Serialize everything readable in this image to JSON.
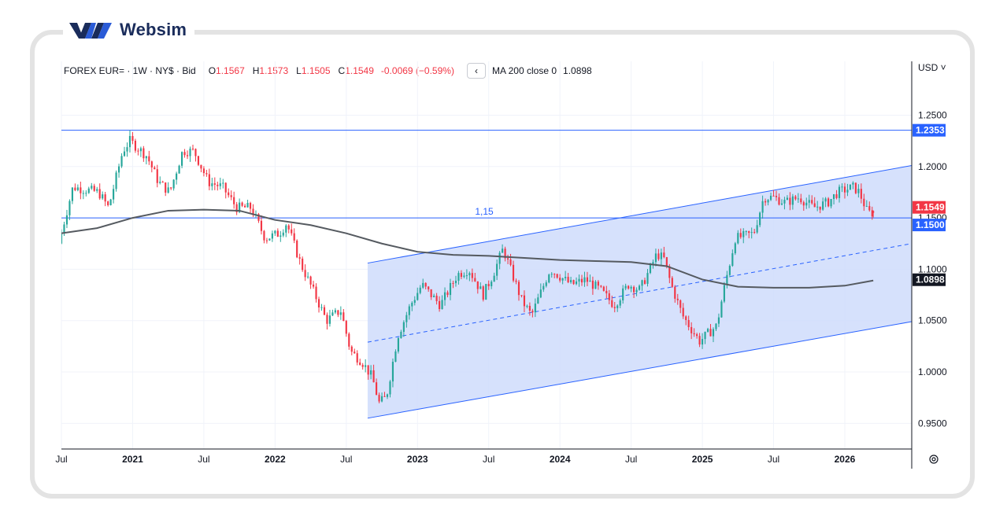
{
  "brand": {
    "name": "Websim"
  },
  "legend": {
    "symbol": "FOREX EUR=  ·  1W  ·  NY$  ·  Bid",
    "o_label": "O",
    "o_value": "1.1567",
    "h_label": "H",
    "h_value": "1.1573",
    "l_label": "L",
    "l_value": "1.1505",
    "c_label": "C",
    "c_value": "1.1549",
    "change": "-0.0069 (−0.59%)",
    "collapse_icon": "chevron-left-icon",
    "ma_label": "MA 200 close 0",
    "ma_value": "1.0898"
  },
  "currency_selector": "USD ˅",
  "colors": {
    "up": "#26a69a",
    "down": "#f23645",
    "accent": "#2962ff",
    "ma": "#555a60",
    "channel_fill": "#cfdcfc"
  },
  "chart_data": {
    "type": "candlestick",
    "y_ticks": [
      "1.2500",
      "1.2000",
      "1.1500",
      "1.1000",
      "1.0500",
      "1.0000",
      "0.9500"
    ],
    "x_ticks": [
      {
        "label": "Jul",
        "t": 2020.5,
        "bold": false
      },
      {
        "label": "2021",
        "t": 2021.0,
        "bold": true
      },
      {
        "label": "Jul",
        "t": 2021.5,
        "bold": false
      },
      {
        "label": "2022",
        "t": 2022.0,
        "bold": true
      },
      {
        "label": "Jul",
        "t": 2022.5,
        "bold": false
      },
      {
        "label": "2023",
        "t": 2023.0,
        "bold": true
      },
      {
        "label": "Jul",
        "t": 2023.5,
        "bold": false
      },
      {
        "label": "2024",
        "t": 2024.0,
        "bold": true
      },
      {
        "label": "Jul",
        "t": 2024.5,
        "bold": false
      },
      {
        "label": "2025",
        "t": 2025.0,
        "bold": true
      },
      {
        "label": "Jul",
        "t": 2025.5,
        "bold": false
      },
      {
        "label": "2026",
        "t": 2026.0,
        "bold": true
      }
    ],
    "ylim": [
      0.925,
      1.2825
    ],
    "xlim": [
      2020.5,
      2026.47
    ],
    "anchors": [
      [
        2020.5,
        1.125
      ],
      [
        2020.6,
        1.18
      ],
      [
        2020.78,
        1.175
      ],
      [
        2020.85,
        1.16
      ],
      [
        2020.95,
        1.215
      ],
      [
        2021.0,
        1.225
      ],
      [
        2021.12,
        1.21
      ],
      [
        2021.2,
        1.185
      ],
      [
        2021.28,
        1.175
      ],
      [
        2021.37,
        1.215
      ],
      [
        2021.45,
        1.215
      ],
      [
        2021.55,
        1.185
      ],
      [
        2021.65,
        1.18
      ],
      [
        2021.75,
        1.16
      ],
      [
        2021.85,
        1.16
      ],
      [
        2021.95,
        1.13
      ],
      [
        2022.05,
        1.135
      ],
      [
        2022.1,
        1.145
      ],
      [
        2022.2,
        1.105
      ],
      [
        2022.3,
        1.075
      ],
      [
        2022.38,
        1.05
      ],
      [
        2022.48,
        1.06
      ],
      [
        2022.55,
        1.02
      ],
      [
        2022.63,
        1.01
      ],
      [
        2022.7,
        0.995
      ],
      [
        2022.75,
        0.97
      ],
      [
        2022.8,
        0.975
      ],
      [
        2022.88,
        1.035
      ],
      [
        2022.97,
        1.065
      ],
      [
        2023.05,
        1.085
      ],
      [
        2023.18,
        1.065
      ],
      [
        2023.3,
        1.095
      ],
      [
        2023.38,
        1.1
      ],
      [
        2023.48,
        1.075
      ],
      [
        2023.55,
        1.095
      ],
      [
        2023.62,
        1.12
      ],
      [
        2023.75,
        1.07
      ],
      [
        2023.82,
        1.055
      ],
      [
        2023.95,
        1.1
      ],
      [
        2024.1,
        1.085
      ],
      [
        2024.2,
        1.09
      ],
      [
        2024.3,
        1.08
      ],
      [
        2024.4,
        1.065
      ],
      [
        2024.5,
        1.085
      ],
      [
        2024.58,
        1.08
      ],
      [
        2024.65,
        1.1
      ],
      [
        2024.7,
        1.115
      ],
      [
        2024.75,
        1.11
      ],
      [
        2024.8,
        1.085
      ],
      [
        2024.88,
        1.055
      ],
      [
        2024.95,
        1.04
      ],
      [
        2025.0,
        1.03
      ],
      [
        2025.12,
        1.045
      ],
      [
        2025.17,
        1.08
      ],
      [
        2025.25,
        1.13
      ],
      [
        2025.38,
        1.135
      ],
      [
        2025.45,
        1.17
      ],
      [
        2025.52,
        1.17
      ],
      [
        2025.6,
        1.165
      ],
      [
        2025.7,
        1.17
      ],
      [
        2025.8,
        1.16
      ],
      [
        2025.9,
        1.165
      ],
      [
        2025.97,
        1.175
      ],
      [
        2026.08,
        1.18
      ],
      [
        2026.12,
        1.175
      ],
      [
        2026.18,
        1.155
      ]
    ],
    "ma200": [
      [
        2020.5,
        1.135
      ],
      [
        2020.75,
        1.14
      ],
      [
        2021.0,
        1.15
      ],
      [
        2021.25,
        1.157
      ],
      [
        2021.5,
        1.158
      ],
      [
        2021.75,
        1.157
      ],
      [
        2022.0,
        1.148
      ],
      [
        2022.25,
        1.143
      ],
      [
        2022.5,
        1.135
      ],
      [
        2022.75,
        1.125
      ],
      [
        2023.0,
        1.117
      ],
      [
        2023.25,
        1.114
      ],
      [
        2023.5,
        1.113
      ],
      [
        2023.75,
        1.111
      ],
      [
        2024.0,
        1.109
      ],
      [
        2024.25,
        1.108
      ],
      [
        2024.5,
        1.107
      ],
      [
        2024.75,
        1.103
      ],
      [
        2025.0,
        1.09
      ],
      [
        2025.25,
        1.083
      ],
      [
        2025.5,
        1.082
      ],
      [
        2025.75,
        1.082
      ],
      [
        2026.0,
        1.084
      ],
      [
        2026.2,
        1.089
      ]
    ],
    "channel": {
      "upper": [
        [
          2022.65,
          1.106
        ],
        [
          2026.47,
          1.201
        ]
      ],
      "lower": [
        [
          2022.65,
          0.955
        ],
        [
          2026.47,
          1.049
        ]
      ],
      "mid": [
        [
          2022.65,
          1.029
        ],
        [
          2026.47,
          1.125
        ]
      ]
    },
    "hlines": [
      {
        "value": 1.2353,
        "label": "1.2353"
      },
      {
        "value": 1.15,
        "label": "1.1500",
        "text": "1,15"
      }
    ],
    "price_tags": [
      {
        "value": 1.1549,
        "label": "1.1549",
        "kind": "last"
      },
      {
        "value": 1.15,
        "label": "1.1500",
        "kind": "level"
      },
      {
        "value": 1.0898,
        "label": "1.0898",
        "kind": "ma"
      }
    ],
    "last_candle": {
      "t": 2026.2,
      "open": 1.1567,
      "high": 1.1573,
      "low": 1.1505,
      "close": 1.1549
    }
  }
}
